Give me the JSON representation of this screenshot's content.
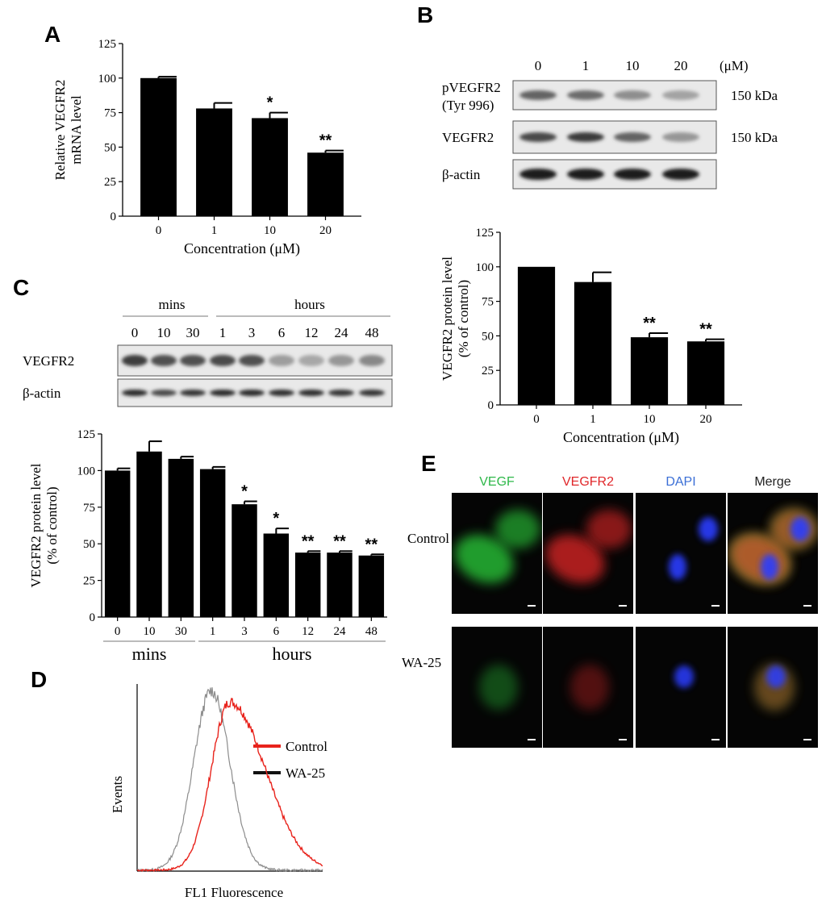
{
  "panel_letters": [
    "A",
    "B",
    "C",
    "D",
    "E"
  ],
  "chart_data": [
    {
      "panel": "A",
      "type": "bar",
      "categories": [
        "0",
        "1",
        "10",
        "20"
      ],
      "values": [
        100,
        78,
        71,
        46
      ],
      "errors": [
        1,
        4,
        4,
        1.5
      ],
      "significance": [
        "",
        "",
        "*",
        "**"
      ],
      "xlabel": "Concentration (μM)",
      "ylabel": [
        "Relative VEGFR2",
        "mRNA level"
      ],
      "ylim": [
        0,
        125
      ],
      "yticks": [
        0,
        25,
        50,
        75,
        100,
        125
      ]
    },
    {
      "panel": "B",
      "type": "bar",
      "categories": [
        "0",
        "1",
        "10",
        "20"
      ],
      "values": [
        100,
        89,
        49,
        46
      ],
      "errors": [
        0,
        7,
        3,
        1.5
      ],
      "significance": [
        "",
        "",
        "**",
        "**"
      ],
      "xlabel": "Concentration (μM)",
      "ylabel": [
        "VEGFR2 protein level",
        "(% of  control)"
      ],
      "ylim": [
        0,
        125
      ],
      "yticks": [
        0,
        25,
        50,
        75,
        100,
        125
      ]
    },
    {
      "panel": "C",
      "type": "bar",
      "categories": [
        "0",
        "10",
        "30",
        "1",
        "3",
        "6",
        "12",
        "24",
        "48"
      ],
      "values": [
        100,
        113,
        108,
        101,
        77,
        57,
        44,
        44,
        42
      ],
      "errors": [
        1.5,
        7,
        1.5,
        1.5,
        2,
        3.5,
        1,
        1,
        0.8
      ],
      "significance": [
        "",
        "",
        "",
        "",
        "*",
        "*",
        "**",
        "**",
        "**"
      ],
      "groups": [
        {
          "label": "mins",
          "from": 0,
          "to": 2
        },
        {
          "label": "hours",
          "from": 3,
          "to": 8
        }
      ],
      "ylabel": [
        "VEGFR2 protein level",
        "(% of  control)"
      ],
      "ylim": [
        0,
        125
      ],
      "yticks": [
        0,
        25,
        50,
        75,
        100,
        125
      ]
    },
    {
      "panel": "D",
      "type": "line",
      "xlabel": "FL1 Fluorescence",
      "ylabel": "Events",
      "legend": [
        "Control",
        "WA-25"
      ],
      "series": [
        {
          "name": "Control",
          "color": "#e8231c",
          "peak_x": 0.5,
          "peak_y": 0.9,
          "width_left": 0.1,
          "width_right": 0.19
        },
        {
          "name": "WA-25",
          "color": "#8c8c8c",
          "peak_x": 0.4,
          "peak_y": 0.96,
          "width_left": 0.095,
          "width_right": 0.1
        }
      ]
    }
  ],
  "blot_B": {
    "lanes": [
      "0",
      "1",
      "10",
      "20"
    ],
    "unit": "(μM)",
    "rows": [
      {
        "label": [
          "pVEGFR2",
          "(Tyr 996)"
        ],
        "kda": "150 kDa",
        "intensity": [
          0.62,
          0.58,
          0.42,
          0.32
        ]
      },
      {
        "label": [
          "VEGFR2"
        ],
        "kda": "150 kDa",
        "intensity": [
          0.75,
          0.82,
          0.62,
          0.38
        ]
      },
      {
        "label": [
          "β-actin"
        ],
        "kda": "",
        "intensity": [
          0.95,
          0.95,
          0.95,
          0.97
        ]
      }
    ]
  },
  "blot_C": {
    "group_labels": [
      "mins",
      "hours"
    ],
    "lanes": [
      "0",
      "10",
      "30",
      "1",
      "3",
      "6",
      "12",
      "24",
      "48"
    ],
    "rows": [
      {
        "label": "VEGFR2",
        "intensity": [
          0.8,
          0.72,
          0.72,
          0.75,
          0.72,
          0.35,
          0.3,
          0.38,
          0.45
        ]
      },
      {
        "label": "β-actin",
        "intensity": [
          0.9,
          0.75,
          0.85,
          0.9,
          0.9,
          0.88,
          0.88,
          0.85,
          0.85
        ]
      }
    ]
  },
  "panel_E": {
    "columns": [
      {
        "label": "VEGF",
        "color": "#2fb84a"
      },
      {
        "label": "VEGFR2",
        "color": "#e0272a"
      },
      {
        "label": "DAPI",
        "color": "#3b6fd6"
      },
      {
        "label": "Merge",
        "color": "#222222"
      }
    ],
    "rows": [
      "Control",
      "WA-25"
    ]
  }
}
